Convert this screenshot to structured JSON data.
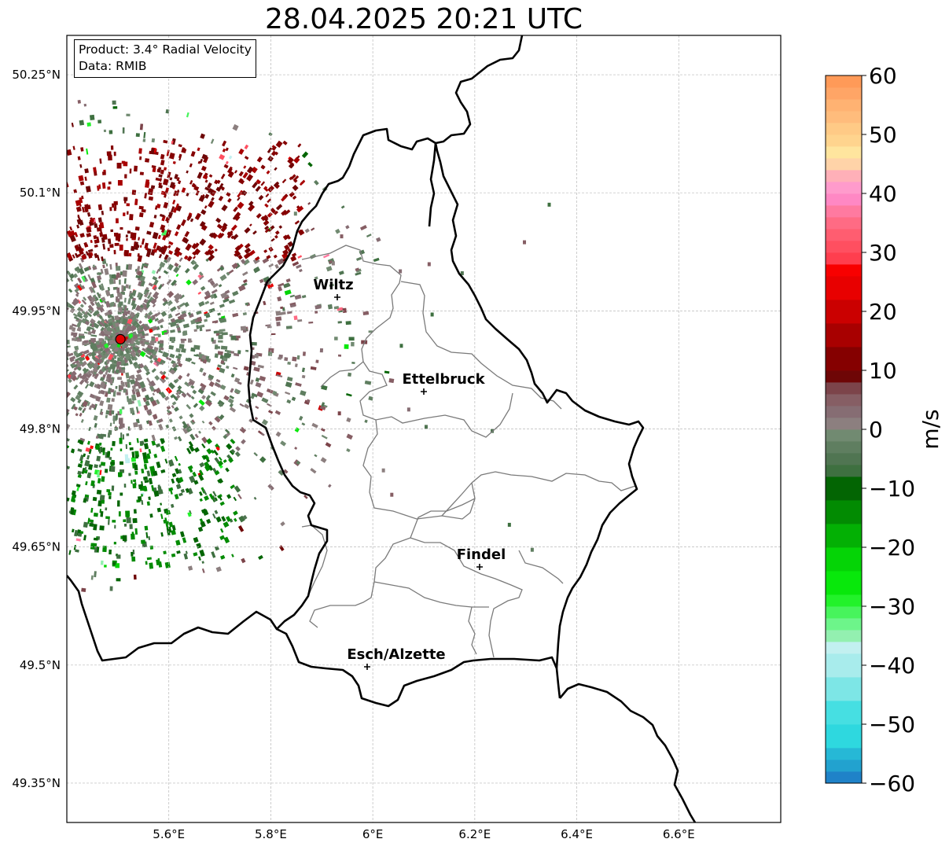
{
  "title": "28.04.2025 20:21 UTC",
  "info": {
    "product": "Product: 3.4° Radial Velocity",
    "data": "Data: RMIB"
  },
  "map": {
    "extent": {
      "lon": [
        5.4,
        6.8
      ],
      "lat": [
        49.3,
        50.3
      ]
    },
    "lat_ticks": [
      {
        "value": 50.25,
        "label": "50.25°N"
      },
      {
        "value": 50.1,
        "label": "50.1°N"
      },
      {
        "value": 49.95,
        "label": "49.95°N"
      },
      {
        "value": 49.8,
        "label": "49.8°N"
      },
      {
        "value": 49.65,
        "label": "49.65°N"
      },
      {
        "value": 49.5,
        "label": "49.5°N"
      },
      {
        "value": 49.35,
        "label": "49.35°N"
      }
    ],
    "lon_ticks": [
      {
        "value": 5.6,
        "label": "5.6°E"
      },
      {
        "value": 5.8,
        "label": "5.8°E"
      },
      {
        "value": 6.0,
        "label": "6°E"
      },
      {
        "value": 6.2,
        "label": "6.2°E"
      },
      {
        "value": 6.4,
        "label": "6.4°E"
      },
      {
        "value": 6.6,
        "label": "6.6°E"
      }
    ],
    "grid": true,
    "radar_site": {
      "lon": 5.505,
      "lat": 49.914
    },
    "cities": [
      {
        "name": "Wiltz",
        "lon": 5.93,
        "lat": 49.966
      },
      {
        "name": "Ettelbruck",
        "lon": 6.1,
        "lat": 49.847
      },
      {
        "name": "Findel",
        "lon": 6.21,
        "lat": 49.63
      },
      {
        "name": "Esch/Alzette",
        "lon": 5.99,
        "lat": 49.5
      }
    ]
  },
  "colorbar": {
    "unit": "m/s",
    "min": -60,
    "max": 60,
    "ticks": [
      {
        "value": 60,
        "label": "60"
      },
      {
        "value": 50,
        "label": "50"
      },
      {
        "value": 40,
        "label": "40"
      },
      {
        "value": 30,
        "label": "30"
      },
      {
        "value": 20,
        "label": "20"
      },
      {
        "value": 10,
        "label": "10"
      },
      {
        "value": 0,
        "label": "0"
      },
      {
        "value": -10,
        "label": "−10"
      },
      {
        "value": -20,
        "label": "−20"
      },
      {
        "value": -30,
        "label": "−30"
      },
      {
        "value": -40,
        "label": "−40"
      },
      {
        "value": -50,
        "label": "−50"
      },
      {
        "value": -60,
        "label": "−60"
      }
    ],
    "bands": [
      {
        "from": -60,
        "to": -58,
        "color": "#1f82c8"
      },
      {
        "from": -58,
        "to": -56,
        "color": "#22a2cf"
      },
      {
        "from": -56,
        "to": -54,
        "color": "#26b8d6"
      },
      {
        "from": -54,
        "to": -50,
        "color": "#2ed8df"
      },
      {
        "from": -50,
        "to": -46,
        "color": "#46dfe2"
      },
      {
        "from": -46,
        "to": -42,
        "color": "#7de6e6"
      },
      {
        "from": -42,
        "to": -38,
        "color": "#a8ecec"
      },
      {
        "from": -38,
        "to": -36,
        "color": "#c2f0f0"
      },
      {
        "from": -36,
        "to": -34,
        "color": "#93f0b0"
      },
      {
        "from": -34,
        "to": -32,
        "color": "#6df58a"
      },
      {
        "from": -32,
        "to": -30,
        "color": "#47f45c"
      },
      {
        "from": -30,
        "to": -28,
        "color": "#22f22a"
      },
      {
        "from": -28,
        "to": -24,
        "color": "#08e80b"
      },
      {
        "from": -24,
        "to": -20,
        "color": "#05d406"
      },
      {
        "from": -20,
        "to": -16,
        "color": "#03b004"
      },
      {
        "from": -16,
        "to": -12,
        "color": "#028b02"
      },
      {
        "from": -12,
        "to": -8,
        "color": "#036503"
      },
      {
        "from": -8,
        "to": -6,
        "color": "#3e7040"
      },
      {
        "from": -6,
        "to": -4,
        "color": "#507552"
      },
      {
        "from": -4,
        "to": -2,
        "color": "#5f7e60"
      },
      {
        "from": -2,
        "to": 0,
        "color": "#718a71"
      },
      {
        "from": 0,
        "to": 2,
        "color": "#8c7f7f"
      },
      {
        "from": 2,
        "to": 4,
        "color": "#866d73"
      },
      {
        "from": 4,
        "to": 6,
        "color": "#865e64"
      },
      {
        "from": 6,
        "to": 8,
        "color": "#7c444a"
      },
      {
        "from": 8,
        "to": 10,
        "color": "#6e0606"
      },
      {
        "from": 10,
        "to": 14,
        "color": "#850000"
      },
      {
        "from": 14,
        "to": 18,
        "color": "#a80000"
      },
      {
        "from": 18,
        "to": 22,
        "color": "#cb0000"
      },
      {
        "from": 22,
        "to": 26,
        "color": "#e80000"
      },
      {
        "from": 26,
        "to": 28,
        "color": "#f80000"
      },
      {
        "from": 28,
        "to": 30,
        "color": "#ff3e4e"
      },
      {
        "from": 30,
        "to": 32,
        "color": "#ff4f60"
      },
      {
        "from": 32,
        "to": 34,
        "color": "#ff5d70"
      },
      {
        "from": 34,
        "to": 36,
        "color": "#ff6b84"
      },
      {
        "from": 36,
        "to": 38,
        "color": "#ff7aa0"
      },
      {
        "from": 38,
        "to": 40,
        "color": "#ff88c4"
      },
      {
        "from": 40,
        "to": 42,
        "color": "#ff9bcc"
      },
      {
        "from": 42,
        "to": 44,
        "color": "#ffb0b8"
      },
      {
        "from": 44,
        "to": 46,
        "color": "#ffd3a8"
      },
      {
        "from": 46,
        "to": 48,
        "color": "#ffe59e"
      },
      {
        "from": 48,
        "to": 50,
        "color": "#ffd48e"
      },
      {
        "from": 50,
        "to": 52,
        "color": "#ffca86"
      },
      {
        "from": 52,
        "to": 54,
        "color": "#ffbc7c"
      },
      {
        "from": 54,
        "to": 56,
        "color": "#ffb272"
      },
      {
        "from": 56,
        "to": 58,
        "color": "#ffa566"
      },
      {
        "from": 58,
        "to": 60,
        "color": "#ff9a58"
      }
    ]
  },
  "colors": {
    "border": "#000000",
    "canton": "#7a7a7a",
    "grid": "#b8b8b8",
    "radar_site": "#e00000"
  }
}
